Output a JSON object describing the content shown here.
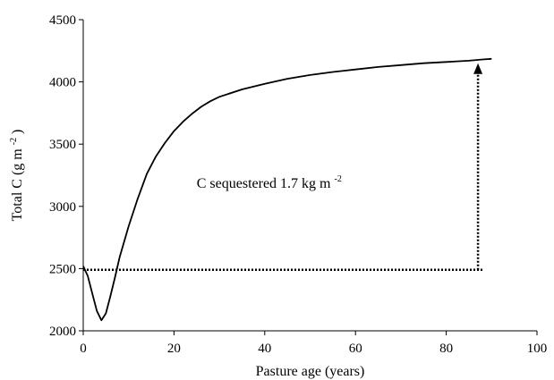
{
  "chart_data": {
    "type": "line",
    "title": "",
    "xlabel": "Pasture age (years)",
    "ylabel": {
      "prefix": "Total C (g m",
      "sup": "-2",
      "suffix": ")"
    },
    "xlim": [
      0,
      100
    ],
    "ylim": [
      2000,
      4500
    ],
    "xticks": [
      0,
      20,
      40,
      60,
      80,
      100
    ],
    "yticks": [
      2000,
      2500,
      3000,
      3500,
      4000,
      4500
    ],
    "grid": false,
    "legend": "none",
    "series": [
      {
        "x": [
          0,
          1,
          2,
          3,
          4,
          5,
          6,
          7,
          8,
          10,
          12,
          14,
          16,
          18,
          20,
          22,
          24,
          26,
          28,
          30,
          35,
          40,
          45,
          50,
          55,
          60,
          65,
          70,
          75,
          80,
          85,
          88,
          90
        ],
        "y": [
          2520,
          2440,
          2300,
          2160,
          2085,
          2140,
          2280,
          2430,
          2590,
          2840,
          3060,
          3260,
          3400,
          3510,
          3605,
          3680,
          3745,
          3800,
          3845,
          3880,
          3940,
          3985,
          4025,
          4055,
          4080,
          4100,
          4120,
          4135,
          4150,
          4160,
          4170,
          4180,
          4185
        ],
        "color": "#000000"
      }
    ],
    "annotations": {
      "baseline_y": 2490,
      "baseline_x": [
        0,
        88
      ],
      "arrow_x": 87,
      "arrow_y": [
        2490,
        4150
      ],
      "text": {
        "main": "C sequestered 1.7 kg m",
        "sup": "-2"
      },
      "text_pos": [
        25,
        3150
      ]
    }
  }
}
